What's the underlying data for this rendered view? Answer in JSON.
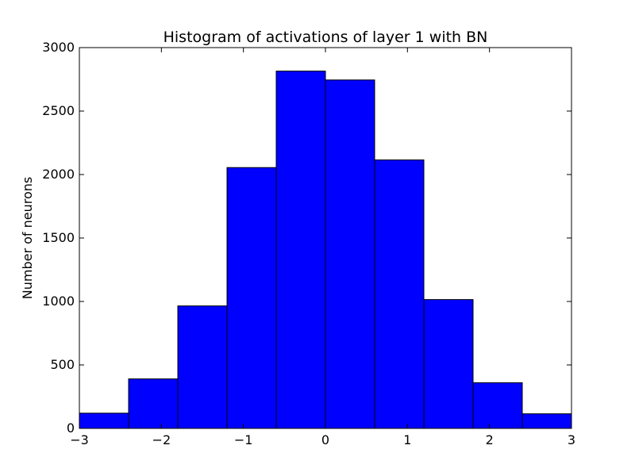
{
  "chart_data": {
    "type": "bar",
    "title": "Histogram of activations of layer 1  with BN",
    "xlabel": "",
    "ylabel": "Number of neurons",
    "bin_edges": [
      -3,
      -2.4,
      -1.8,
      -1.2,
      -0.6,
      0,
      0.6,
      1.2,
      1.8,
      2.4,
      3
    ],
    "values": [
      120,
      390,
      965,
      2055,
      2815,
      2745,
      2115,
      1015,
      360,
      115
    ],
    "xlim": [
      -3,
      3
    ],
    "ylim": [
      0,
      3000
    ],
    "xticks": [
      -3,
      -2,
      -1,
      0,
      1,
      2,
      3
    ],
    "xtick_labels": [
      "−3",
      "−2",
      "−1",
      "0",
      "1",
      "2",
      "3"
    ],
    "yticks": [
      0,
      500,
      1000,
      1500,
      2000,
      2500,
      3000
    ],
    "ytick_labels": [
      "0",
      "500",
      "1000",
      "1500",
      "2000",
      "2500",
      "3000"
    ],
    "bar_color": "#0000ff",
    "edge_color": "#000000",
    "grid": false
  }
}
